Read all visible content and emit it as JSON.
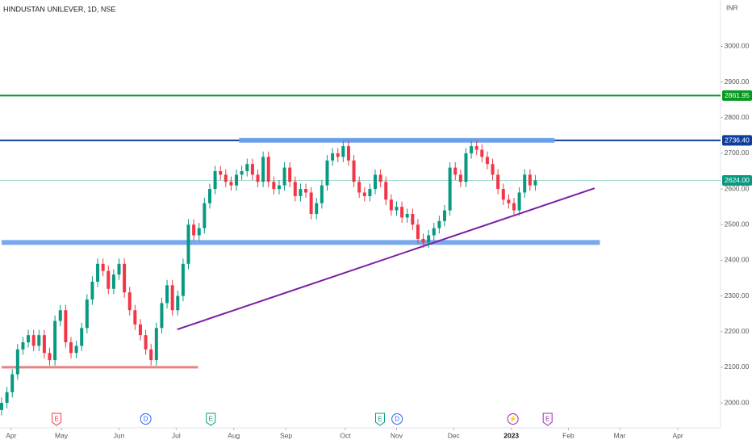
{
  "chart_data": {
    "type": "candlestick",
    "title": "HINDUSTAN UNILEVER, 1D, NSE",
    "currency": "INR",
    "x": [
      0,
      1,
      2,
      3,
      4,
      5,
      6,
      7,
      8,
      9,
      10,
      11,
      12,
      13,
      14,
      15,
      16,
      17,
      18,
      19,
      20,
      21,
      22,
      23,
      24,
      25,
      26,
      27,
      28,
      29,
      30,
      31,
      32,
      33,
      34,
      35,
      36,
      37,
      38,
      39,
      40,
      41,
      42,
      43,
      44,
      45,
      46,
      47,
      48,
      49,
      50,
      51,
      52,
      53,
      54,
      55,
      56,
      57,
      58,
      59,
      60,
      61,
      62,
      63,
      64,
      65,
      66,
      67,
      68,
      69,
      70,
      71,
      72,
      73,
      74,
      75,
      76,
      77,
      78,
      79,
      80,
      81,
      82,
      83,
      84,
      85,
      86,
      87,
      88,
      89,
      90,
      91,
      92,
      93,
      94,
      95,
      96,
      97,
      98,
      99,
      100
    ],
    "open": [
      1980,
      2000,
      2030,
      2080,
      2150,
      2170,
      2190,
      2160,
      2190,
      2140,
      2120,
      2230,
      2260,
      2170,
      2140,
      2160,
      2210,
      2290,
      2340,
      2390,
      2370,
      2320,
      2360,
      2390,
      2310,
      2260,
      2220,
      2190,
      2150,
      2120,
      2210,
      2280,
      2330,
      2260,
      2300,
      2390,
      2500,
      2470,
      2490,
      2560,
      2600,
      2650,
      2640,
      2620,
      2610,
      2640,
      2650,
      2670,
      2640,
      2620,
      2690,
      2620,
      2600,
      2610,
      2660,
      2620,
      2580,
      2600,
      2590,
      2530,
      2560,
      2610,
      2680,
      2700,
      2690,
      2720,
      2680,
      2620,
      2590,
      2580,
      2600,
      2640,
      2620,
      2570,
      2540,
      2550,
      2520,
      2530,
      2500,
      2460,
      2450,
      2470,
      2490,
      2510,
      2540,
      2660,
      2640,
      2620,
      2700,
      2720,
      2710,
      2690,
      2670,
      2640,
      2600,
      2570,
      2560,
      2540,
      2590,
      2640,
      2610
    ],
    "high": [
      2015,
      2045,
      2095,
      2165,
      2185,
      2205,
      2205,
      2205,
      2205,
      2155,
      2245,
      2275,
      2275,
      2185,
      2175,
      2225,
      2305,
      2355,
      2405,
      2405,
      2385,
      2375,
      2405,
      2405,
      2325,
      2275,
      2235,
      2205,
      2165,
      2225,
      2295,
      2345,
      2345,
      2315,
      2405,
      2515,
      2515,
      2505,
      2575,
      2615,
      2665,
      2665,
      2655,
      2635,
      2655,
      2665,
      2685,
      2685,
      2655,
      2705,
      2705,
      2635,
      2625,
      2675,
      2675,
      2635,
      2615,
      2615,
      2605,
      2575,
      2625,
      2695,
      2715,
      2715,
      2735,
      2735,
      2695,
      2635,
      2605,
      2615,
      2655,
      2655,
      2635,
      2585,
      2565,
      2565,
      2545,
      2545,
      2515,
      2475,
      2485,
      2505,
      2525,
      2555,
      2675,
      2675,
      2655,
      2715,
      2735,
      2735,
      2725,
      2705,
      2685,
      2655,
      2615,
      2585,
      2575,
      2605,
      2655,
      2655,
      2639
    ],
    "low": [
      1965,
      1985,
      2015,
      2065,
      2135,
      2155,
      2145,
      2145,
      2125,
      2105,
      2105,
      2215,
      2155,
      2125,
      2125,
      2145,
      2195,
      2275,
      2325,
      2355,
      2305,
      2305,
      2345,
      2295,
      2245,
      2205,
      2175,
      2135,
      2105,
      2105,
      2195,
      2265,
      2245,
      2245,
      2285,
      2375,
      2455,
      2455,
      2475,
      2545,
      2585,
      2625,
      2605,
      2595,
      2595,
      2625,
      2635,
      2625,
      2605,
      2605,
      2605,
      2585,
      2585,
      2595,
      2605,
      2565,
      2565,
      2575,
      2515,
      2515,
      2545,
      2595,
      2665,
      2675,
      2675,
      2665,
      2605,
      2575,
      2565,
      2565,
      2585,
      2605,
      2555,
      2525,
      2525,
      2505,
      2505,
      2485,
      2445,
      2435,
      2435,
      2455,
      2475,
      2495,
      2525,
      2625,
      2605,
      2605,
      2685,
      2695,
      2675,
      2655,
      2625,
      2585,
      2555,
      2545,
      2525,
      2525,
      2575,
      2595,
      2595
    ],
    "close": [
      2000,
      2030,
      2080,
      2150,
      2170,
      2190,
      2160,
      2190,
      2140,
      2120,
      2230,
      2260,
      2170,
      2140,
      2160,
      2210,
      2290,
      2340,
      2390,
      2370,
      2320,
      2360,
      2390,
      2310,
      2260,
      2220,
      2190,
      2150,
      2120,
      2210,
      2280,
      2330,
      2260,
      2300,
      2390,
      2500,
      2470,
      2490,
      2560,
      2600,
      2650,
      2640,
      2620,
      2610,
      2640,
      2650,
      2670,
      2640,
      2620,
      2690,
      2620,
      2600,
      2610,
      2660,
      2620,
      2580,
      2600,
      2590,
      2530,
      2560,
      2610,
      2680,
      2700,
      2690,
      2720,
      2680,
      2620,
      2590,
      2580,
      2600,
      2640,
      2620,
      2570,
      2540,
      2550,
      2520,
      2530,
      2500,
      2460,
      2450,
      2470,
      2490,
      2510,
      2540,
      2660,
      2640,
      2620,
      2700,
      2720,
      2710,
      2690,
      2670,
      2640,
      2600,
      2570,
      2560,
      2540,
      2590,
      2640,
      2610,
      2624
    ],
    "up_color": "#089981",
    "down_color": "#f23645",
    "xlim": [
      -0.3,
      134.7
    ],
    "ylim": [
      1930,
      3130
    ],
    "xticks": [
      {
        "value": 1.8,
        "label": "Apr"
      },
      {
        "value": 11.2,
        "label": "May"
      },
      {
        "value": 22,
        "label": "Jun"
      },
      {
        "value": 32.7,
        "label": "Jul"
      },
      {
        "value": 43.5,
        "label": "Aug"
      },
      {
        "value": 53.3,
        "label": "Sep"
      },
      {
        "value": 64.4,
        "label": "Oct"
      },
      {
        "value": 74,
        "label": "Nov"
      },
      {
        "value": 84.7,
        "label": "Dec"
      },
      {
        "value": 95.5,
        "label": "2023"
      },
      {
        "value": 106.2,
        "label": "Feb"
      },
      {
        "value": 115.8,
        "label": "Mar"
      },
      {
        "value": 126.7,
        "label": "Apr"
      }
    ],
    "yticks": [
      {
        "value": 2000,
        "label": "2000.00"
      },
      {
        "value": 2100,
        "label": "2100.00"
      },
      {
        "value": 2200,
        "label": "2200.00"
      },
      {
        "value": 2300,
        "label": "2300.00"
      },
      {
        "value": 2400,
        "label": "2400.00"
      },
      {
        "value": 2500,
        "label": "2500.00"
      },
      {
        "value": 2600,
        "label": "2600.00"
      },
      {
        "value": 2700,
        "label": "2700.00"
      },
      {
        "value": 2800,
        "label": "2800.00"
      },
      {
        "value": 2900,
        "label": "2900.00"
      },
      {
        "value": 3000,
        "label": "3000.00"
      }
    ],
    "price_lines": [
      {
        "value": 2861.95,
        "color": "#089920"
      },
      {
        "value": 2736.4,
        "label": "2736.40",
        "color": "#0d3e9e"
      },
      {
        "value": 2624,
        "label": "2624.00",
        "color": "#089981"
      }
    ],
    "zones": [
      {
        "value": 2736.4,
        "x": [
          44.5,
          103.6
        ],
        "color": "#6d9eeb"
      },
      {
        "value": 2450,
        "x": [
          0,
          112.1
        ],
        "color": "#6d9eeb"
      },
      {
        "value": 2100,
        "x": [
          0,
          36.8
        ],
        "color": "#e57373"
      }
    ],
    "trendline": {
      "x": [
        32.9,
        111.1
      ],
      "values": [
        2206,
        2602
      ],
      "color": "#7b1fa2"
    },
    "events": [
      {
        "x": 10.3,
        "label": "E",
        "color": "#f23645"
      },
      {
        "x": 27,
        "label": "D",
        "color": "#2962ff"
      },
      {
        "x": 39.2,
        "label": "E",
        "color": "#089981"
      },
      {
        "x": 70.9,
        "label": "E",
        "color": "#089981"
      },
      {
        "x": 74.1,
        "label": "D",
        "color": "#2962ff"
      },
      {
        "x": 95.8,
        "label": "⚡",
        "color": "#9c27b0"
      },
      {
        "x": 102.3,
        "label": "E",
        "color": "#9c27b0"
      }
    ]
  }
}
